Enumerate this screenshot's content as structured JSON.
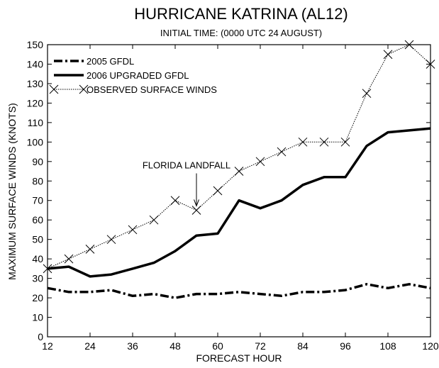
{
  "chart_data": {
    "type": "line",
    "title": "HURRICANE KATRINA  (AL12)",
    "subtitle": "INITIAL TIME: (0000 UTC 24 AUGUST)",
    "xlabel": "FORECAST HOUR",
    "ylabel": "MAXIMUM SURFACE WINDS (KNOTS)",
    "xlim": [
      12,
      120
    ],
    "ylim": [
      0,
      150
    ],
    "xticks": [
      12,
      24,
      36,
      48,
      60,
      72,
      84,
      96,
      108,
      120
    ],
    "yticks": [
      0,
      10,
      20,
      30,
      40,
      50,
      60,
      70,
      80,
      90,
      100,
      110,
      120,
      130,
      140,
      150
    ],
    "grid": false,
    "legend_position": "top-left",
    "series": [
      {
        "name": "2005 GFDL",
        "style": "dash-dot",
        "color": "#000000",
        "x": [
          12,
          18,
          24,
          30,
          36,
          42,
          48,
          54,
          60,
          66,
          72,
          78,
          84,
          90,
          96,
          102,
          108,
          114,
          120
        ],
        "y": [
          25,
          23,
          23,
          24,
          21,
          22,
          20,
          22,
          22,
          23,
          22,
          21,
          23,
          23,
          24,
          27,
          25,
          27,
          25
        ]
      },
      {
        "name": "2006 UPGRADED GFDL",
        "style": "solid-thick",
        "color": "#000000",
        "x": [
          12,
          18,
          24,
          30,
          36,
          42,
          48,
          54,
          60,
          66,
          72,
          78,
          84,
          90,
          96,
          102,
          108,
          114,
          120
        ],
        "y": [
          35,
          36,
          31,
          32,
          35,
          38,
          44,
          52,
          53,
          70,
          66,
          70,
          78,
          82,
          82,
          98,
          105,
          106,
          107
        ]
      },
      {
        "name": "OBSERVED SURFACE WINDS",
        "style": "dotted-x",
        "color": "#000000",
        "x": [
          12,
          18,
          24,
          30,
          36,
          42,
          48,
          54,
          60,
          66,
          72,
          78,
          84,
          90,
          96,
          102,
          108,
          114,
          120
        ],
        "y": [
          35,
          40,
          45,
          50,
          55,
          60,
          70,
          65,
          75,
          85,
          90,
          95,
          100,
          100,
          100,
          125,
          145,
          150,
          140
        ]
      }
    ],
    "annotations": [
      {
        "text": "FLORIDA LANDFALL",
        "x": 54,
        "y": 65
      }
    ]
  }
}
